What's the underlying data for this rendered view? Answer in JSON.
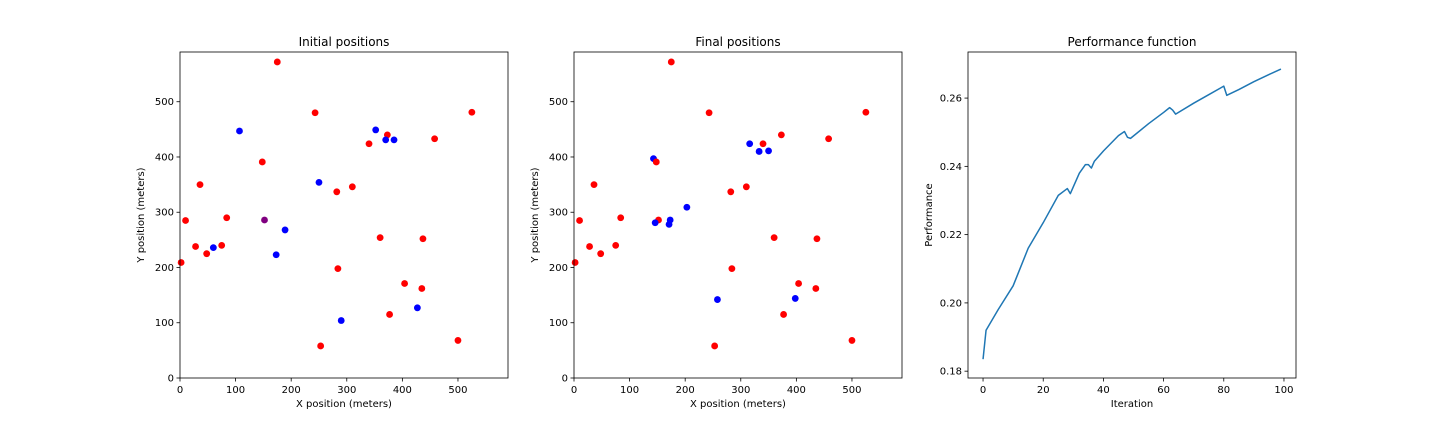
{
  "chart_data": [
    {
      "type": "scatter",
      "title": "Initial positions",
      "xlabel": "X position (meters)",
      "ylabel": "Y position (meters)",
      "xlim": [
        0,
        590
      ],
      "ylim": [
        0,
        590
      ],
      "xticks": [
        0,
        100,
        200,
        300,
        400,
        500
      ],
      "yticks": [
        0,
        100,
        200,
        300,
        400,
        500
      ],
      "grid": false,
      "colors": {
        "red": "#ff0000",
        "blue": "#0000ff",
        "purple": "#800080"
      },
      "points": [
        {
          "x": 175,
          "y": 572,
          "c": "red"
        },
        {
          "x": 525,
          "y": 481,
          "c": "red"
        },
        {
          "x": 243,
          "y": 480,
          "c": "red"
        },
        {
          "x": 107,
          "y": 447,
          "c": "blue"
        },
        {
          "x": 352,
          "y": 449,
          "c": "blue"
        },
        {
          "x": 373,
          "y": 440,
          "c": "red"
        },
        {
          "x": 370,
          "y": 431,
          "c": "blue"
        },
        {
          "x": 385,
          "y": 431,
          "c": "blue"
        },
        {
          "x": 458,
          "y": 433,
          "c": "red"
        },
        {
          "x": 340,
          "y": 424,
          "c": "red"
        },
        {
          "x": 148,
          "y": 391,
          "c": "red"
        },
        {
          "x": 250,
          "y": 354,
          "c": "blue"
        },
        {
          "x": 36,
          "y": 350,
          "c": "red"
        },
        {
          "x": 310,
          "y": 346,
          "c": "red"
        },
        {
          "x": 282,
          "y": 337,
          "c": "red"
        },
        {
          "x": 84,
          "y": 290,
          "c": "red"
        },
        {
          "x": 10,
          "y": 285,
          "c": "red"
        },
        {
          "x": 152,
          "y": 286,
          "c": "purple"
        },
        {
          "x": 189,
          "y": 268,
          "c": "blue"
        },
        {
          "x": 360,
          "y": 254,
          "c": "red"
        },
        {
          "x": 437,
          "y": 252,
          "c": "red"
        },
        {
          "x": 75,
          "y": 240,
          "c": "red"
        },
        {
          "x": 28,
          "y": 238,
          "c": "red"
        },
        {
          "x": 60,
          "y": 236,
          "c": "blue"
        },
        {
          "x": 48,
          "y": 225,
          "c": "red"
        },
        {
          "x": 173,
          "y": 223,
          "c": "blue"
        },
        {
          "x": 2,
          "y": 209,
          "c": "red"
        },
        {
          "x": 284,
          "y": 198,
          "c": "red"
        },
        {
          "x": 404,
          "y": 171,
          "c": "red"
        },
        {
          "x": 435,
          "y": 162,
          "c": "red"
        },
        {
          "x": 427,
          "y": 127,
          "c": "blue"
        },
        {
          "x": 377,
          "y": 115,
          "c": "red"
        },
        {
          "x": 290,
          "y": 104,
          "c": "blue"
        },
        {
          "x": 500,
          "y": 68,
          "c": "red"
        },
        {
          "x": 253,
          "y": 58,
          "c": "red"
        }
      ]
    },
    {
      "type": "scatter",
      "title": "Final positions",
      "xlabel": "X position (meters)",
      "ylabel": "Y position (meters)",
      "xlim": [
        0,
        590
      ],
      "ylim": [
        0,
        590
      ],
      "xticks": [
        0,
        100,
        200,
        300,
        400,
        500
      ],
      "yticks": [
        0,
        100,
        200,
        300,
        400,
        500
      ],
      "grid": false,
      "colors": {
        "red": "#ff0000",
        "blue": "#0000ff"
      },
      "points": [
        {
          "x": 175,
          "y": 572,
          "c": "red"
        },
        {
          "x": 525,
          "y": 481,
          "c": "red"
        },
        {
          "x": 243,
          "y": 480,
          "c": "red"
        },
        {
          "x": 373,
          "y": 440,
          "c": "red"
        },
        {
          "x": 458,
          "y": 433,
          "c": "red"
        },
        {
          "x": 316,
          "y": 424,
          "c": "blue"
        },
        {
          "x": 340,
          "y": 424,
          "c": "red"
        },
        {
          "x": 333,
          "y": 410,
          "c": "blue"
        },
        {
          "x": 350,
          "y": 411,
          "c": "blue"
        },
        {
          "x": 143,
          "y": 397,
          "c": "blue"
        },
        {
          "x": 148,
          "y": 391,
          "c": "red"
        },
        {
          "x": 36,
          "y": 350,
          "c": "red"
        },
        {
          "x": 310,
          "y": 346,
          "c": "red"
        },
        {
          "x": 282,
          "y": 337,
          "c": "red"
        },
        {
          "x": 203,
          "y": 309,
          "c": "blue"
        },
        {
          "x": 84,
          "y": 290,
          "c": "red"
        },
        {
          "x": 10,
          "y": 285,
          "c": "red"
        },
        {
          "x": 152,
          "y": 286,
          "c": "red"
        },
        {
          "x": 173,
          "y": 286,
          "c": "blue"
        },
        {
          "x": 146,
          "y": 281,
          "c": "blue"
        },
        {
          "x": 171,
          "y": 278,
          "c": "blue"
        },
        {
          "x": 360,
          "y": 254,
          "c": "red"
        },
        {
          "x": 437,
          "y": 252,
          "c": "red"
        },
        {
          "x": 75,
          "y": 240,
          "c": "red"
        },
        {
          "x": 28,
          "y": 238,
          "c": "red"
        },
        {
          "x": 48,
          "y": 225,
          "c": "red"
        },
        {
          "x": 2,
          "y": 209,
          "c": "red"
        },
        {
          "x": 284,
          "y": 198,
          "c": "red"
        },
        {
          "x": 404,
          "y": 171,
          "c": "red"
        },
        {
          "x": 435,
          "y": 162,
          "c": "red"
        },
        {
          "x": 258,
          "y": 142,
          "c": "blue"
        },
        {
          "x": 398,
          "y": 144,
          "c": "blue"
        },
        {
          "x": 377,
          "y": 115,
          "c": "red"
        },
        {
          "x": 500,
          "y": 68,
          "c": "red"
        },
        {
          "x": 253,
          "y": 58,
          "c": "red"
        }
      ]
    },
    {
      "type": "line",
      "title": "Performance function",
      "xlabel": "Iteration",
      "ylabel": "Performance",
      "xlim": [
        -5,
        104
      ],
      "ylim": [
        0.178,
        0.2735
      ],
      "xticks": [
        0,
        20,
        40,
        60,
        80,
        100
      ],
      "yticks": [
        0.18,
        0.2,
        0.22,
        0.24,
        0.26
      ],
      "ytick_labels": [
        "0.18",
        "0.20",
        "0.22",
        "0.24",
        "0.26"
      ],
      "grid": false,
      "colors": {
        "line": "#1f77b4"
      },
      "series": [
        {
          "x": [
            0,
            1,
            5,
            10,
            15,
            20,
            25,
            28,
            29,
            30,
            32,
            34,
            35,
            36,
            37,
            40,
            45,
            47,
            48,
            49,
            55,
            60,
            62,
            63,
            64,
            70,
            75,
            79,
            80,
            81,
            85,
            90,
            95,
            99
          ],
          "y": [
            0.1835,
            0.192,
            0.198,
            0.205,
            0.216,
            0.2235,
            0.2315,
            0.2335,
            0.232,
            0.234,
            0.238,
            0.2405,
            0.2405,
            0.2395,
            0.2415,
            0.2445,
            0.249,
            0.2502,
            0.2485,
            0.2482,
            0.2525,
            0.2558,
            0.2572,
            0.2565,
            0.2553,
            0.2585,
            0.261,
            0.263,
            0.2635,
            0.2608,
            0.2625,
            0.2648,
            0.2669,
            0.2685
          ]
        }
      ]
    }
  ]
}
